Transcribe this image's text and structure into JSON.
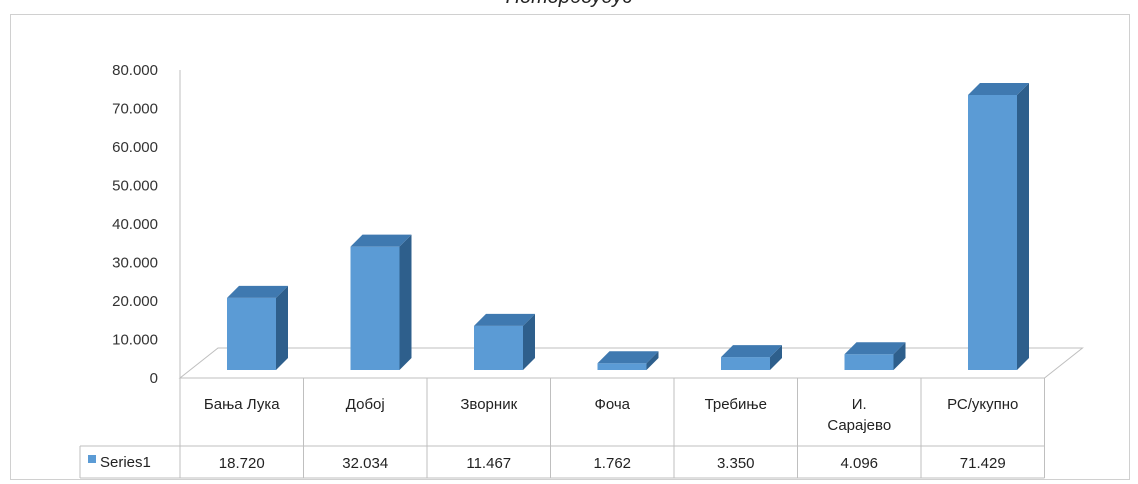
{
  "chart_title": "Ноторбоудус",
  "chart_data": {
    "type": "bar",
    "title": "Ноторбоудус",
    "categories": [
      "Бања Лука",
      "Добој",
      "Зворник",
      "Фоча",
      "Требиње",
      "И. Сарајево",
      "РС/укупно"
    ],
    "series": [
      {
        "name": "Series1",
        "values": [
          18.72,
          32.034,
          11.467,
          1.762,
          3.35,
          4.096,
          71.429
        ],
        "labels": [
          "18.720",
          "32.034",
          "11.467",
          "1.762",
          "3.350",
          "4.096",
          "71.429"
        ]
      }
    ],
    "ylim": [
      0,
      80
    ],
    "yticks": [
      "0",
      "10.000",
      "20.000",
      "30.000",
      "40.000",
      "50.000",
      "60.000",
      "70.000",
      "80.000"
    ],
    "grid": false,
    "legend": "data-table",
    "colors": {
      "bar_front": "#5b9bd5",
      "bar_side": "#2e5f8c",
      "bar_top": "#3f79b0"
    }
  }
}
